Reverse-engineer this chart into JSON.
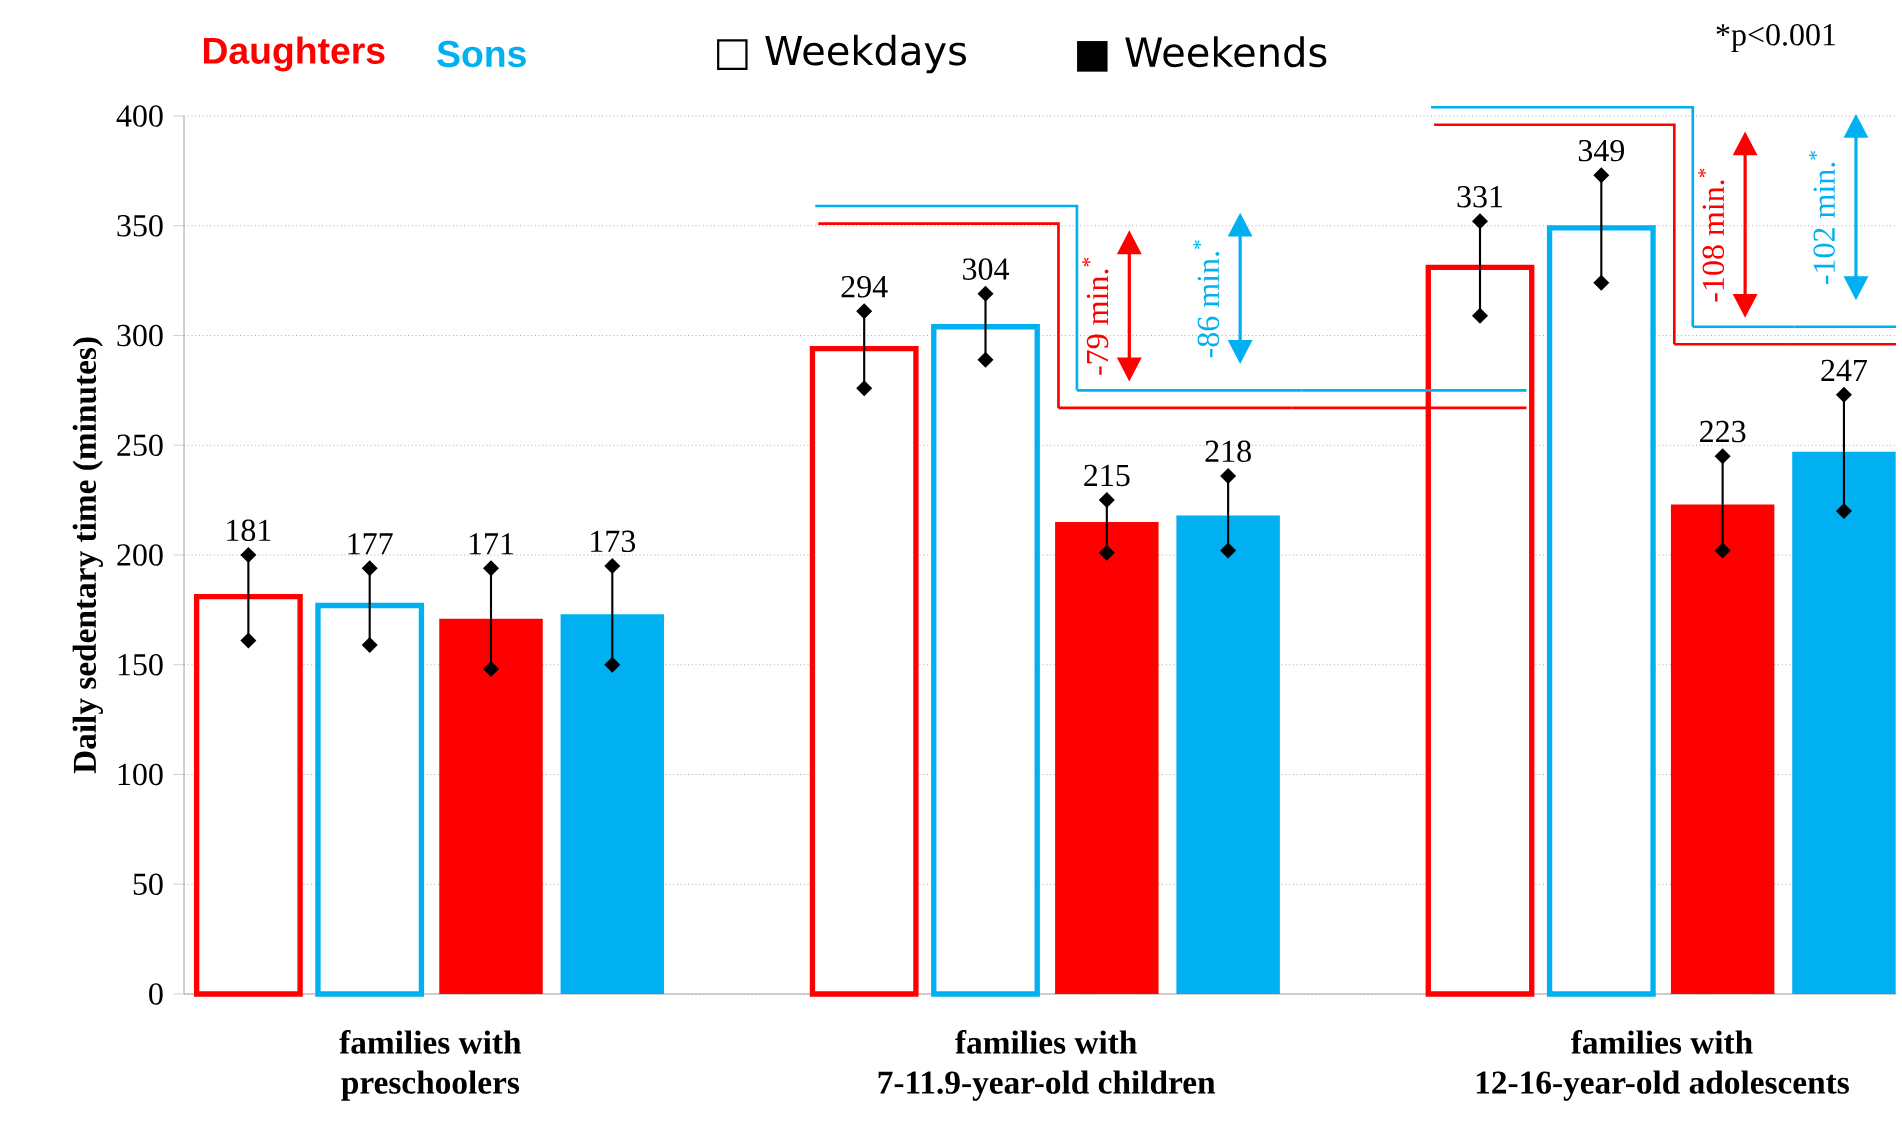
{
  "chart_data": {
    "type": "bar",
    "ylabel": "Daily sedentary time (minutes)",
    "categories": [
      "families with\npreschoolers",
      "families with\n7-11.9-year-old children",
      "families with\n12-16-year-old adolescents"
    ],
    "series": [
      {
        "color": "#ff0000",
        "values": [
          181,
          294,
          331
        ],
        "errors": [
          [
            161,
            200
          ],
          [
            276,
            311
          ],
          [
            309,
            352
          ]
        ]
      },
      {
        "color": "#00b0f0",
        "values": [
          177,
          304,
          349
        ],
        "errors": [
          [
            159,
            194
          ],
          [
            289,
            319
          ],
          [
            324,
            373
          ]
        ]
      },
      {
        "color": "#ff0000",
        "values": [
          171,
          215,
          223
        ],
        "errors": [
          [
            148,
            194
          ],
          [
            201,
            225
          ],
          [
            202,
            245
          ]
        ]
      },
      {
        "color": "#00b0f0",
        "values": [
          173,
          218,
          247
        ],
        "errors": [
          [
            150,
            195
          ],
          [
            202,
            236
          ],
          [
            220,
            273
          ]
        ]
      }
    ],
    "data_labels": true,
    "ylim": [
      0,
      400
    ],
    "yticks": [
      0,
      50,
      100,
      150,
      200,
      250,
      300,
      350,
      400
    ],
    "grid": "y",
    "annotations": [
      "Daughters",
      "Sons",
      "□ Weekdays",
      "■ Weekends",
      "*p<0.001",
      "-79 min.$^{*}$",
      "-86 min.$^{*}$",
      "-108 min.$^{*}$",
      "-102 min.$^{*}$"
    ]
  }
}
